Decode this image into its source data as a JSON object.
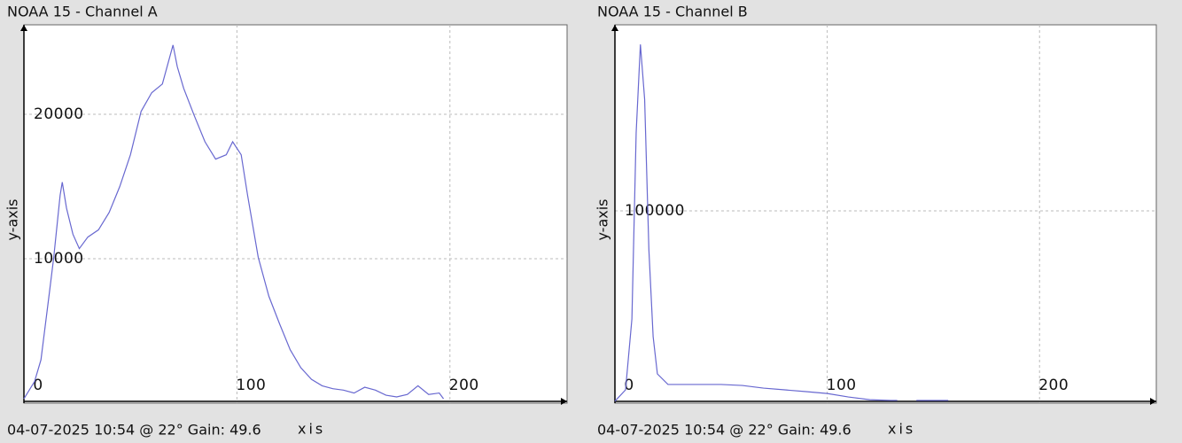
{
  "chart_data": [
    {
      "type": "line",
      "title": "NOAA 15 - Channel A",
      "footer": "04-07-2025 10:54 @ 22° Gain: 49.6",
      "xlabel": "xis",
      "ylabel": "y-axis",
      "x": [
        0,
        5,
        8,
        12,
        14,
        17,
        18,
        20,
        23,
        26,
        30,
        35,
        40,
        45,
        50,
        55,
        60,
        65,
        70,
        72,
        75,
        80,
        85,
        90,
        95,
        98,
        102,
        105,
        110,
        115,
        120,
        125,
        130,
        135,
        140,
        145,
        150,
        155,
        160,
        165,
        170,
        175,
        180,
        185,
        190,
        195,
        197
      ],
      "series": [
        {
          "name": "Channel A",
          "color": "#6868d0",
          "values": [
            300,
            1500,
            3000,
            7700,
            10100,
            14400,
            15300,
            13500,
            11700,
            10700,
            11500,
            12000,
            13200,
            15000,
            17200,
            20200,
            21500,
            22100,
            24800,
            23300,
            21800,
            19900,
            18100,
            16900,
            17200,
            18100,
            17200,
            14400,
            10100,
            7400,
            5500,
            3700,
            2450,
            1650,
            1200,
            1000,
            900,
            700,
            1100,
            900,
            550,
            430,
            600,
            1200,
            600,
            700,
            300
          ]
        }
      ],
      "xlim": [
        0,
        255
      ],
      "ylim": [
        0,
        26200
      ],
      "xticks": [
        0,
        100,
        200
      ],
      "yticks": [
        10000,
        20000
      ],
      "grid": true
    },
    {
      "type": "line",
      "title": "NOAA 15 - Channel B",
      "footer": "04-07-2025 10:54 @ 22° Gain: 49.6",
      "xlabel": "xis",
      "ylabel": "y-axis",
      "x": [
        0,
        5,
        8,
        10,
        12,
        14,
        16,
        18,
        20,
        25,
        30,
        40,
        50,
        60,
        70,
        80,
        90,
        100,
        110,
        120,
        130,
        133,
        137,
        142,
        150,
        157
      ],
      "series": [
        {
          "name": "Channel B",
          "color": "#6868d0",
          "values": [
            1000,
            6900,
            43800,
            140600,
            186600,
            158000,
            79700,
            34600,
            15200,
            9700,
            9700,
            9700,
            9700,
            9200,
            7800,
            6900,
            6000,
            5000,
            3200,
            1800,
            1400,
            1400,
            null,
            1400,
            1400,
            1400
          ]
        }
      ],
      "xlim": [
        0,
        255
      ],
      "ylim": [
        0,
        196800
      ],
      "xticks": [
        0,
        100,
        200
      ],
      "yticks": [
        100000
      ],
      "grid": true
    }
  ]
}
